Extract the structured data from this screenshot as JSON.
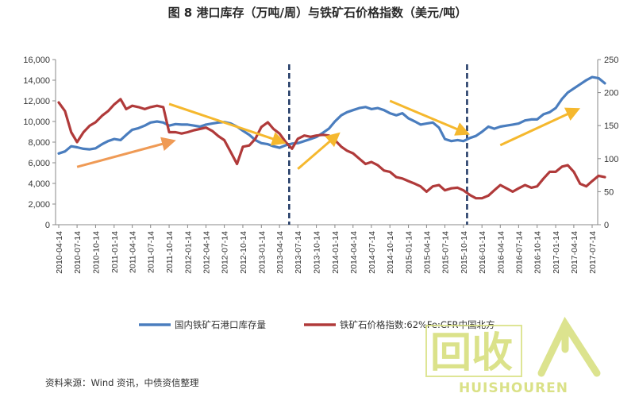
{
  "title": "图 8  港口库存（万吨/周）与铁矿石价格指数（美元/吨）",
  "source": "资料来源：Wind 资讯，中债资信整理",
  "watermark": {
    "big": "回收",
    "small": "HUISHOUREN"
  },
  "colors": {
    "inventory": "#4a7dbe",
    "price": "#b03a3a",
    "arrow": "#f5b82e",
    "arrow_alt": "#ef9a55",
    "divider": "#1f3864",
    "watermark": "#d6de7a"
  },
  "chart_data": {
    "type": "line",
    "title": "图 8  港口库存（万吨/周）与铁矿石价格指数（美元/吨）",
    "x_ticks": [
      "2010-04-14",
      "2010-07-14",
      "2010-10-14",
      "2011-01-14",
      "2011-04-14",
      "2011-07-14",
      "2011-10-14",
      "2012-01-14",
      "2012-04-14",
      "2012-07-14",
      "2012-10-14",
      "2013-01-14",
      "2013-04-14",
      "2013-07-14",
      "2013-10-14",
      "2014-01-14",
      "2014-04-14",
      "2014-07-14",
      "2014-10-14",
      "2015-01-14",
      "2015-04-14",
      "2015-07-14",
      "2015-10-14",
      "2016-01-14",
      "2016-04-14",
      "2016-07-14",
      "2016-10-14",
      "2017-01-14",
      "2017-04-14",
      "2017-07-14"
    ],
    "y_left": {
      "min": 0,
      "max": 16000,
      "ticks": [
        "0",
        "2,000",
        "4,000",
        "6,000",
        "8,000",
        "10,000",
        "12,000",
        "14,000",
        "16,000"
      ]
    },
    "y_right": {
      "min": 0,
      "max": 250,
      "ticks": [
        "0",
        "50",
        "100",
        "150",
        "200",
        "250"
      ]
    },
    "series": [
      {
        "name": "国内铁矿石港口库存量",
        "axis": "left",
        "points": [
          [
            "2010-04-14",
            6900
          ],
          [
            "2010-05-15",
            7100
          ],
          [
            "2010-06-15",
            7600
          ],
          [
            "2010-07-14",
            7500
          ],
          [
            "2010-08-15",
            7350
          ],
          [
            "2010-09-15",
            7300
          ],
          [
            "2010-10-14",
            7400
          ],
          [
            "2010-11-15",
            7800
          ],
          [
            "2010-12-15",
            8100
          ],
          [
            "2011-01-14",
            8300
          ],
          [
            "2011-02-15",
            8200
          ],
          [
            "2011-03-15",
            8700
          ],
          [
            "2011-04-14",
            9200
          ],
          [
            "2011-05-15",
            9350
          ],
          [
            "2011-06-15",
            9600
          ],
          [
            "2011-07-14",
            9900
          ],
          [
            "2011-08-15",
            10000
          ],
          [
            "2011-09-15",
            9900
          ],
          [
            "2011-10-14",
            9600
          ],
          [
            "2011-11-15",
            9750
          ],
          [
            "2011-12-15",
            9700
          ],
          [
            "2012-01-14",
            9700
          ],
          [
            "2012-02-15",
            9600
          ],
          [
            "2012-03-15",
            9500
          ],
          [
            "2012-04-14",
            9700
          ],
          [
            "2012-05-15",
            9800
          ],
          [
            "2012-06-15",
            9900
          ],
          [
            "2012-07-14",
            9950
          ],
          [
            "2012-08-15",
            9800
          ],
          [
            "2012-09-15",
            9500
          ],
          [
            "2012-10-14",
            9100
          ],
          [
            "2012-11-15",
            8700
          ],
          [
            "2012-12-15",
            8200
          ],
          [
            "2013-01-14",
            7900
          ],
          [
            "2013-02-15",
            7800
          ],
          [
            "2013-03-15",
            7600
          ],
          [
            "2013-04-14",
            7450
          ],
          [
            "2013-05-15",
            7700
          ],
          [
            "2013-06-15",
            7850
          ],
          [
            "2013-07-14",
            7900
          ],
          [
            "2013-08-15",
            8100
          ],
          [
            "2013-09-15",
            8300
          ],
          [
            "2013-10-14",
            8500
          ],
          [
            "2013-11-15",
            8900
          ],
          [
            "2013-12-15",
            9300
          ],
          [
            "2014-01-14",
            10000
          ],
          [
            "2014-02-15",
            10600
          ],
          [
            "2014-03-15",
            10900
          ],
          [
            "2014-04-14",
            11100
          ],
          [
            "2014-05-15",
            11300
          ],
          [
            "2014-06-15",
            11400
          ],
          [
            "2014-07-14",
            11200
          ],
          [
            "2014-08-15",
            11300
          ],
          [
            "2014-09-15",
            11100
          ],
          [
            "2014-10-14",
            10800
          ],
          [
            "2014-11-15",
            10600
          ],
          [
            "2014-12-15",
            10800
          ],
          [
            "2015-01-14",
            10300
          ],
          [
            "2015-02-15",
            10000
          ],
          [
            "2015-03-15",
            9700
          ],
          [
            "2015-04-14",
            9800
          ],
          [
            "2015-05-15",
            9900
          ],
          [
            "2015-06-15",
            9400
          ],
          [
            "2015-07-14",
            8300
          ],
          [
            "2015-08-15",
            8100
          ],
          [
            "2015-09-15",
            8200
          ],
          [
            "2015-10-14",
            8100
          ],
          [
            "2015-11-15",
            8400
          ],
          [
            "2015-12-15",
            8600
          ],
          [
            "2016-01-14",
            9000
          ],
          [
            "2016-02-15",
            9500
          ],
          [
            "2016-03-15",
            9300
          ],
          [
            "2016-04-14",
            9500
          ],
          [
            "2016-05-15",
            9600
          ],
          [
            "2016-06-15",
            9700
          ],
          [
            "2016-07-14",
            9800
          ],
          [
            "2016-08-15",
            10100
          ],
          [
            "2016-09-15",
            10200
          ],
          [
            "2016-10-14",
            10200
          ],
          [
            "2016-11-15",
            10700
          ],
          [
            "2016-12-15",
            10900
          ],
          [
            "2017-01-14",
            11300
          ],
          [
            "2017-02-15",
            12200
          ],
          [
            "2017-03-15",
            12800
          ],
          [
            "2017-04-14",
            13200
          ],
          [
            "2017-05-15",
            13600
          ],
          [
            "2017-06-15",
            14000
          ],
          [
            "2017-07-14",
            14300
          ],
          [
            "2017-08-15",
            14200
          ],
          [
            "2017-09-15",
            13700
          ]
        ]
      },
      {
        "name": "铁矿石价格指数:62%Fe:CFR中国北方",
        "axis": "right",
        "points": [
          [
            "2010-04-14",
            185
          ],
          [
            "2010-05-15",
            172
          ],
          [
            "2010-06-15",
            140
          ],
          [
            "2010-07-14",
            125
          ],
          [
            "2010-08-15",
            140
          ],
          [
            "2010-09-15",
            150
          ],
          [
            "2010-10-14",
            155
          ],
          [
            "2010-11-15",
            165
          ],
          [
            "2010-12-15",
            172
          ],
          [
            "2011-01-14",
            182
          ],
          [
            "2011-02-15",
            190
          ],
          [
            "2011-03-15",
            175
          ],
          [
            "2011-04-14",
            180
          ],
          [
            "2011-05-15",
            178
          ],
          [
            "2011-06-15",
            175
          ],
          [
            "2011-07-14",
            178
          ],
          [
            "2011-08-15",
            180
          ],
          [
            "2011-09-15",
            178
          ],
          [
            "2011-10-14",
            140
          ],
          [
            "2011-11-15",
            140
          ],
          [
            "2011-12-15",
            138
          ],
          [
            "2012-01-14",
            140
          ],
          [
            "2012-02-15",
            143
          ],
          [
            "2012-03-15",
            145
          ],
          [
            "2012-04-14",
            147
          ],
          [
            "2012-05-15",
            142
          ],
          [
            "2012-06-15",
            134
          ],
          [
            "2012-07-14",
            128
          ],
          [
            "2012-08-15",
            110
          ],
          [
            "2012-09-15",
            92
          ],
          [
            "2012-10-14",
            118
          ],
          [
            "2012-11-15",
            120
          ],
          [
            "2012-12-15",
            130
          ],
          [
            "2013-01-14",
            148
          ],
          [
            "2013-02-15",
            155
          ],
          [
            "2013-03-15",
            145
          ],
          [
            "2013-04-14",
            138
          ],
          [
            "2013-05-15",
            125
          ],
          [
            "2013-06-15",
            115
          ],
          [
            "2013-07-14",
            130
          ],
          [
            "2013-08-15",
            135
          ],
          [
            "2013-09-15",
            133
          ],
          [
            "2013-10-14",
            135
          ],
          [
            "2013-11-15",
            136
          ],
          [
            "2013-12-15",
            135
          ],
          [
            "2014-01-14",
            128
          ],
          [
            "2014-02-15",
            118
          ],
          [
            "2014-03-15",
            112
          ],
          [
            "2014-04-14",
            108
          ],
          [
            "2014-05-15",
            100
          ],
          [
            "2014-06-15",
            92
          ],
          [
            "2014-07-14",
            95
          ],
          [
            "2014-08-15",
            90
          ],
          [
            "2014-09-15",
            82
          ],
          [
            "2014-10-14",
            80
          ],
          [
            "2014-11-15",
            72
          ],
          [
            "2014-12-15",
            70
          ],
          [
            "2015-01-14",
            66
          ],
          [
            "2015-02-15",
            62
          ],
          [
            "2015-03-15",
            58
          ],
          [
            "2015-04-14",
            50
          ],
          [
            "2015-05-15",
            58
          ],
          [
            "2015-06-15",
            60
          ],
          [
            "2015-07-14",
            52
          ],
          [
            "2015-08-15",
            55
          ],
          [
            "2015-09-15",
            56
          ],
          [
            "2015-10-14",
            52
          ],
          [
            "2015-11-15",
            45
          ],
          [
            "2015-12-15",
            40
          ],
          [
            "2016-01-14",
            40
          ],
          [
            "2016-02-15",
            44
          ],
          [
            "2016-03-15",
            52
          ],
          [
            "2016-04-14",
            60
          ],
          [
            "2016-05-15",
            55
          ],
          [
            "2016-06-15",
            50
          ],
          [
            "2016-07-14",
            55
          ],
          [
            "2016-08-15",
            60
          ],
          [
            "2016-09-15",
            56
          ],
          [
            "2016-10-14",
            58
          ],
          [
            "2016-11-15",
            70
          ],
          [
            "2016-12-15",
            80
          ],
          [
            "2017-01-14",
            80
          ],
          [
            "2017-02-15",
            88
          ],
          [
            "2017-03-15",
            90
          ],
          [
            "2017-04-14",
            80
          ],
          [
            "2017-05-15",
            62
          ],
          [
            "2017-06-15",
            58
          ],
          [
            "2017-07-14",
            66
          ],
          [
            "2017-08-15",
            74
          ],
          [
            "2017-09-15",
            72
          ]
        ]
      }
    ],
    "dividers": [
      "2013-06-01",
      "2015-11-01"
    ],
    "arrows": [
      {
        "from": [
          "2010-07-14",
          5600
        ],
        "to": [
          "2011-10-14",
          8000
        ],
        "color": "arrow_alt"
      },
      {
        "from": [
          "2011-10-14",
          11700
        ],
        "to": [
          "2013-04-14",
          8100
        ],
        "color": "arrow"
      },
      {
        "from": [
          "2013-07-14",
          5400
        ],
        "to": [
          "2014-01-14",
          8500
        ],
        "color": "arrow"
      },
      {
        "from": [
          "2014-10-14",
          12000
        ],
        "to": [
          "2015-10-14",
          9000
        ],
        "color": "arrow"
      },
      {
        "from": [
          "2016-04-14",
          7700
        ],
        "to": [
          "2017-04-14",
          11000
        ],
        "color": "arrow"
      }
    ],
    "legend": [
      {
        "label": "国内铁矿石港口库存量",
        "color": "#4a7dbe"
      },
      {
        "label": "铁矿石价格指数:62%Fe:CFR中国北方",
        "color": "#b03a3a"
      }
    ],
    "grid": false
  }
}
